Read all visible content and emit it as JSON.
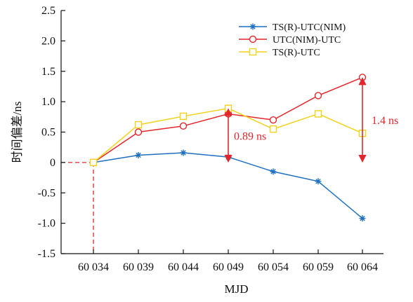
{
  "chart_data": {
    "type": "line",
    "xlabel": "MJD",
    "ylabel": "时间偏差/ns",
    "x": [
      60034,
      60039,
      60044,
      60049,
      60054,
      60059,
      60064
    ],
    "x_tick_labels": [
      "60 034",
      "60 039",
      "60 044",
      "60 049",
      "60 054",
      "60 059",
      "60 064"
    ],
    "ylim": [
      -1.5,
      2.5
    ],
    "y_ticks": [
      -1.5,
      -1.0,
      -0.5,
      0,
      0.5,
      1.0,
      1.5,
      2.0,
      2.5
    ],
    "y_tick_labels": [
      "-1.5",
      "-1.0",
      "-0.5",
      "0",
      "0.5",
      "1.0",
      "1.5",
      "2.0",
      "2.5"
    ],
    "grid": false,
    "legend_position": "top-right",
    "series": [
      {
        "name": "TS(R)-UTC(NIM)",
        "color": "#1f6fbf",
        "marker": "asterisk",
        "values": [
          0.0,
          0.12,
          0.16,
          0.09,
          -0.15,
          -0.31,
          -0.92
        ]
      },
      {
        "name": "UTC(NIM)-UTC",
        "color": "#e3262b",
        "marker": "circle",
        "values": [
          0.0,
          0.5,
          0.6,
          0.8,
          0.7,
          1.1,
          1.4
        ]
      },
      {
        "name": "TS(R)-UTC",
        "color": "#f2d21a",
        "marker": "square",
        "values": [
          0.0,
          0.62,
          0.76,
          0.89,
          0.55,
          0.8,
          0.48
        ]
      }
    ],
    "annotations": [
      {
        "text": "0.89 ns",
        "x": 60049,
        "y_from": 0.0,
        "y_to": 0.89,
        "color": "#e3262b"
      },
      {
        "text": "1.4 ns",
        "x": 60064,
        "y_from": 0.0,
        "y_to": 1.4,
        "color": "#e3262b"
      }
    ],
    "reference_lines": {
      "color": "#e3262b",
      "x": 60034,
      "y": 0
    }
  }
}
